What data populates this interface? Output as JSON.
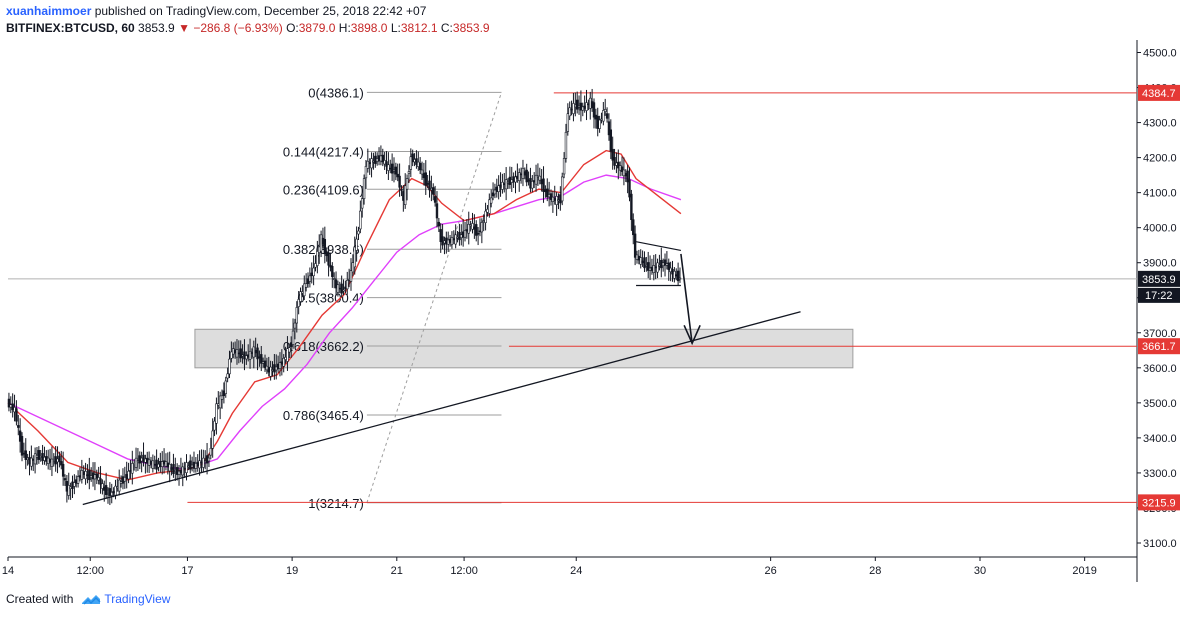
{
  "header": {
    "author": "xuanhaimmoer",
    "published_text": "published on TradingView.com, December 25, 2018 22:42 +07",
    "symbol": "BITFINEX:BTCUSD, 60",
    "last": "3853.9",
    "change_arrow": "▼",
    "change": "−286.8 (−6.93%)",
    "o_label": "O:",
    "o_value": "3879.0",
    "h_label": "H:",
    "h_value": "3898.0",
    "l_label": "L:",
    "l_value": "3812.1",
    "c_label": "C:",
    "c_value": "3853.9"
  },
  "footer": {
    "created_with": "Created with",
    "brand": "TradingView",
    "logo_icon": "tradingview-cloud-icon"
  },
  "colors": {
    "candle": "#131722",
    "ema_fast": "#e53935",
    "ema_slow": "#e040fb",
    "horizontal_line": "#e53935",
    "zone_fill": "#d9d9d9",
    "zone_border": "#9e9e9e",
    "fib_line": "#9e9e9e",
    "trendline": "#131722",
    "price_badge": "#e53935",
    "current_price_badge": "#131722"
  },
  "chart_data": {
    "type": "candlestick",
    "symbol": "BITFINEX:BTCUSD",
    "interval": "60",
    "y_axis": {
      "ticks": [
        3100.0,
        3200.0,
        3300.0,
        3400.0,
        3500.0,
        3600.0,
        3700.0,
        3800.0,
        3900.0,
        4000.0,
        4100.0,
        4200.0,
        4300.0,
        4400.0,
        4500.0
      ],
      "tick_labels": [
        "3100.0",
        "3200.0",
        "3300.0",
        "3400.0",
        "3500.0",
        "3600.0",
        "3700.0",
        "3800.0",
        "3900.0",
        "4000.0",
        "4100.0",
        "4200.0",
        "4300.0",
        "4400.0",
        "4500.0"
      ],
      "range": [
        3060,
        4530
      ]
    },
    "x_axis": {
      "tick_labels": [
        "14",
        "12:00",
        "17",
        "19",
        "21",
        "12:00",
        "24",
        "26",
        "28",
        "30",
        "2019"
      ],
      "tick_time": [
        0,
        11,
        24,
        38,
        52,
        61,
        76,
        102,
        116,
        130,
        144
      ],
      "range": [
        0,
        151
      ]
    },
    "price_path": [
      [
        0,
        3500
      ],
      [
        1,
        3480
      ],
      [
        2,
        3360
      ],
      [
        3,
        3330
      ],
      [
        4,
        3350
      ],
      [
        5,
        3340
      ],
      [
        6,
        3330
      ],
      [
        7,
        3340
      ],
      [
        8,
        3250
      ],
      [
        9,
        3270
      ],
      [
        10,
        3300
      ],
      [
        11,
        3290
      ],
      [
        12,
        3290
      ],
      [
        13,
        3250
      ],
      [
        14,
        3240
      ],
      [
        15,
        3270
      ],
      [
        16,
        3290
      ],
      [
        17,
        3330
      ],
      [
        18,
        3340
      ],
      [
        19,
        3330
      ],
      [
        20,
        3320
      ],
      [
        21,
        3330
      ],
      [
        22,
        3310
      ],
      [
        23,
        3300
      ],
      [
        24,
        3320
      ],
      [
        25,
        3320
      ],
      [
        26,
        3330
      ],
      [
        27,
        3340
      ],
      [
        28,
        3490
      ],
      [
        29,
        3530
      ],
      [
        30,
        3650
      ],
      [
        31,
        3640
      ],
      [
        32,
        3630
      ],
      [
        33,
        3650
      ],
      [
        34,
        3620
      ],
      [
        35,
        3590
      ],
      [
        36,
        3600
      ],
      [
        37,
        3620
      ],
      [
        38,
        3670
      ],
      [
        39,
        3800
      ],
      [
        40,
        3840
      ],
      [
        41,
        3880
      ],
      [
        42,
        3970
      ],
      [
        43,
        3900
      ],
      [
        44,
        3830
      ],
      [
        45,
        3820
      ],
      [
        46,
        3870
      ],
      [
        47,
        4000
      ],
      [
        48,
        4180
      ],
      [
        49,
        4190
      ],
      [
        50,
        4200
      ],
      [
        51,
        4170
      ],
      [
        52,
        4160
      ],
      [
        53,
        4080
      ],
      [
        54,
        4200
      ],
      [
        55,
        4180
      ],
      [
        56,
        4130
      ],
      [
        57,
        4100
      ],
      [
        58,
        3960
      ],
      [
        59,
        3960
      ],
      [
        60,
        3970
      ],
      [
        61,
        3980
      ],
      [
        62,
        4010
      ],
      [
        63,
        3980
      ],
      [
        64,
        4040
      ],
      [
        65,
        4100
      ],
      [
        66,
        4120
      ],
      [
        67,
        4130
      ],
      [
        68,
        4140
      ],
      [
        69,
        4160
      ],
      [
        70,
        4120
      ],
      [
        71,
        4150
      ],
      [
        72,
        4100
      ],
      [
        73,
        4080
      ],
      [
        74,
        4080
      ],
      [
        75,
        4330
      ],
      [
        76,
        4350
      ],
      [
        77,
        4340
      ],
      [
        78,
        4360
      ],
      [
        79,
        4290
      ],
      [
        80,
        4340
      ],
      [
        81,
        4190
      ],
      [
        82,
        4170
      ],
      [
        83,
        4140
      ],
      [
        84,
        3920
      ],
      [
        85,
        3900
      ],
      [
        86,
        3880
      ],
      [
        87,
        3890
      ],
      [
        88,
        3900
      ],
      [
        89,
        3870
      ],
      [
        90,
        3853.9
      ]
    ],
    "ema_fast": [
      [
        0,
        3500
      ],
      [
        4,
        3420
      ],
      [
        8,
        3330
      ],
      [
        12,
        3300
      ],
      [
        16,
        3280
      ],
      [
        20,
        3300
      ],
      [
        24,
        3310
      ],
      [
        26,
        3325
      ],
      [
        28,
        3390
      ],
      [
        30,
        3470
      ],
      [
        33,
        3560
      ],
      [
        36,
        3580
      ],
      [
        39,
        3660
      ],
      [
        42,
        3750
      ],
      [
        45,
        3810
      ],
      [
        48,
        3950
      ],
      [
        51,
        4080
      ],
      [
        54,
        4140
      ],
      [
        56,
        4120
      ],
      [
        58,
        4070
      ],
      [
        61,
        4020
      ],
      [
        65,
        4040
      ],
      [
        68,
        4080
      ],
      [
        71,
        4110
      ],
      [
        74,
        4100
      ],
      [
        77,
        4180
      ],
      [
        80,
        4220
      ],
      [
        82,
        4210
      ],
      [
        84,
        4140
      ],
      [
        87,
        4090
      ],
      [
        90,
        4040
      ]
    ],
    "ema_slow": [
      [
        0,
        3500
      ],
      [
        4,
        3460
      ],
      [
        8,
        3420
      ],
      [
        12,
        3380
      ],
      [
        16,
        3340
      ],
      [
        20,
        3320
      ],
      [
        24,
        3310
      ],
      [
        28,
        3340
      ],
      [
        31,
        3420
      ],
      [
        34,
        3490
      ],
      [
        37,
        3540
      ],
      [
        40,
        3610
      ],
      [
        43,
        3700
      ],
      [
        46,
        3770
      ],
      [
        49,
        3850
      ],
      [
        52,
        3930
      ],
      [
        55,
        3980
      ],
      [
        58,
        4010
      ],
      [
        61,
        4020
      ],
      [
        65,
        4040
      ],
      [
        68,
        4060
      ],
      [
        71,
        4080
      ],
      [
        74,
        4090
      ],
      [
        77,
        4130
      ],
      [
        80,
        4150
      ],
      [
        83,
        4140
      ],
      [
        86,
        4110
      ],
      [
        90,
        4080
      ]
    ],
    "fibonacci": {
      "from_time": 48,
      "to_time": 66,
      "levels": [
        {
          "label": "0(4386.1)",
          "price": 4386.1
        },
        {
          "label": "0.144(4217.4)",
          "price": 4217.4
        },
        {
          "label": "0.236(4109.6)",
          "price": 4109.6
        },
        {
          "label": "0.382(3938.6)",
          "price": 3938.6
        },
        {
          "label": "0.5(3800.4)",
          "price": 3800.4
        },
        {
          "label": "0.618(3662.2)",
          "price": 3662.2
        },
        {
          "label": "0.786(3465.4)",
          "price": 3465.4
        },
        {
          "label": "1(3214.7)",
          "price": 3214.7
        }
      ],
      "diagonal": [
        [
          48,
          3214.7
        ],
        [
          66,
          4386.1
        ]
      ]
    },
    "horizontal_lines": [
      {
        "price": 4384.7,
        "from_time": 73,
        "label": "4384.7"
      },
      {
        "price": 3661.7,
        "from_time": 67,
        "label": "3661.7"
      },
      {
        "price": 3215.9,
        "from_time": 24,
        "label": "3215.9"
      }
    ],
    "zone": {
      "from_time": 25,
      "to_time": 113,
      "top": 3710,
      "bottom": 3600
    },
    "trendline": [
      [
        10,
        3210
      ],
      [
        106,
        3760
      ]
    ],
    "pattern": {
      "upper": [
        [
          84,
          3960
        ],
        [
          90,
          3935
        ]
      ],
      "lower": [
        [
          84,
          3835
        ],
        [
          90,
          3835
        ]
      ],
      "arrow": [
        [
          90,
          3925
        ],
        [
          91.5,
          3670
        ]
      ]
    },
    "current_price": {
      "price": 3853.9,
      "label": "3853.9",
      "countdown": "17:22"
    }
  }
}
